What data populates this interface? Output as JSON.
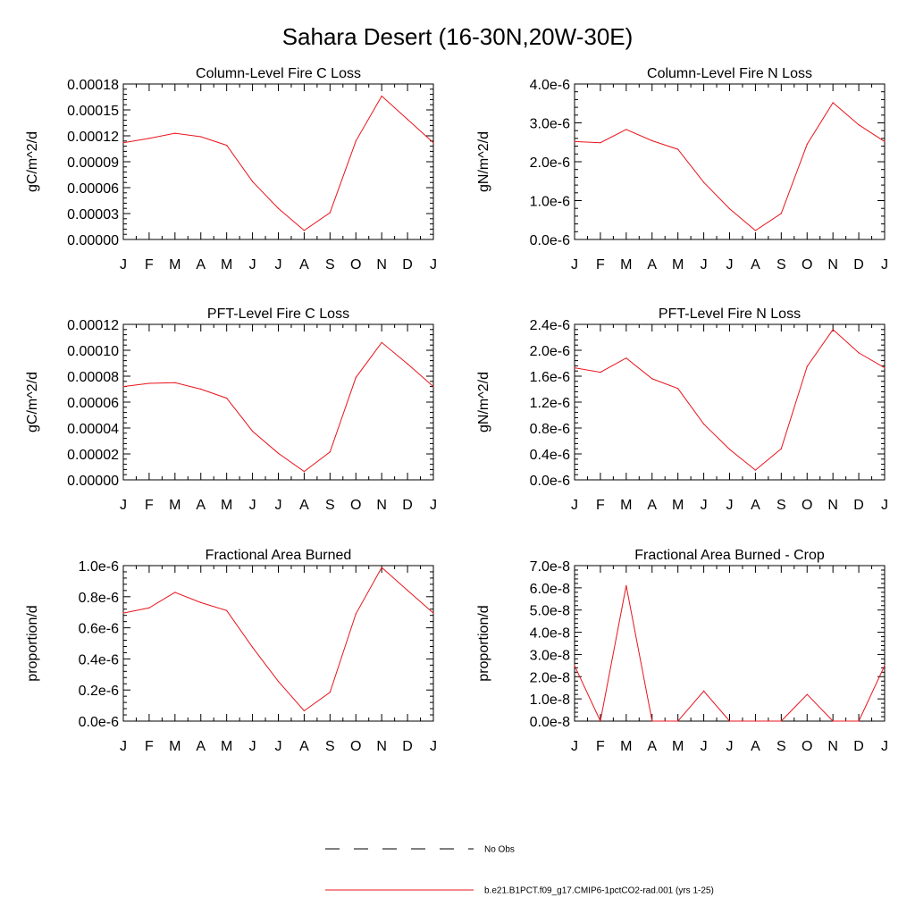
{
  "figure_title": "Sahara Desert (16-30N,20W-30E)",
  "legend": [
    {
      "label": "No Obs",
      "style": "dashed",
      "color": "#000000"
    },
    {
      "label": "b.e21.B1PCT.f09_g17.CMIP6-1pctCO2-rad.001 (yrs 1-25)",
      "style": "solid",
      "color": "#e8141c"
    }
  ],
  "colors": {
    "series": "#e8141c",
    "axes": "#000000",
    "background": "#ffffff"
  },
  "chart_data": [
    {
      "type": "line",
      "title": "Column-Level Fire C Loss",
      "ylabel": "gC/m^2/d",
      "xlabel": "",
      "categories": [
        "J",
        "F",
        "M",
        "A",
        "M",
        "J",
        "J",
        "A",
        "S",
        "O",
        "N",
        "D",
        "J"
      ],
      "ylim": [
        0,
        0.00018
      ],
      "yticks": [
        "0.00000",
        "0.00003",
        "0.00006",
        "0.00009",
        "0.00012",
        "0.00015",
        "0.00018"
      ],
      "series": [
        {
          "values": [
            0.000112,
            0.000117,
            0.000123,
            0.000119,
            0.000109,
            6.7e-05,
            3.6e-05,
            1.05e-05,
            3.1e-05,
            0.000114,
            0.000166,
            0.000139,
            0.000112
          ]
        }
      ]
    },
    {
      "type": "line",
      "title": "Column-Level Fire N Loss",
      "ylabel": "gN/m^2/d",
      "xlabel": "",
      "categories": [
        "J",
        "F",
        "M",
        "A",
        "M",
        "J",
        "J",
        "A",
        "S",
        "O",
        "N",
        "D",
        "J"
      ],
      "ylim": [
        0,
        4e-06
      ],
      "yticks": [
        "0.0e-6",
        "1.0e-6",
        "2.0e-6",
        "3.0e-6",
        "4.0e-6"
      ],
      "series": [
        {
          "values": [
            2.52e-06,
            2.49e-06,
            2.83e-06,
            2.54e-06,
            2.32e-06,
            1.47e-06,
            7.9e-07,
            2.3e-07,
            6.7e-07,
            2.45e-06,
            3.52e-06,
            2.95e-06,
            2.52e-06
          ]
        }
      ]
    },
    {
      "type": "line",
      "title": "PFT-Level Fire C Loss",
      "ylabel": "gC/m^2/d",
      "xlabel": "",
      "categories": [
        "J",
        "F",
        "M",
        "A",
        "M",
        "J",
        "J",
        "A",
        "S",
        "O",
        "N",
        "D",
        "J"
      ],
      "ylim": [
        0,
        0.00012
      ],
      "yticks": [
        "0.00000",
        "0.00002",
        "0.00004",
        "0.00006",
        "0.00008",
        "0.00010",
        "0.00012"
      ],
      "series": [
        {
          "values": [
            7.2e-05,
            7.45e-05,
            7.5e-05,
            7e-05,
            6.3e-05,
            3.75e-05,
            2.05e-05,
            6.5e-06,
            2.15e-05,
            7.9e-05,
            0.000106,
            8.95e-05,
            7.2e-05
          ]
        }
      ]
    },
    {
      "type": "line",
      "title": "PFT-Level Fire N Loss",
      "ylabel": "gN/m^2/d",
      "xlabel": "",
      "categories": [
        "J",
        "F",
        "M",
        "A",
        "M",
        "J",
        "J",
        "A",
        "S",
        "O",
        "N",
        "D",
        "J"
      ],
      "ylim": [
        0,
        2.4e-06
      ],
      "yticks": [
        "0.0e-6",
        "0.4e-6",
        "0.8e-6",
        "1.2e-6",
        "1.6e-6",
        "2.0e-6",
        "2.4e-6"
      ],
      "series": [
        {
          "values": [
            1.73e-06,
            1.66e-06,
            1.88e-06,
            1.56e-06,
            1.41e-06,
            8.6e-07,
            4.7e-07,
            1.5e-07,
            4.8e-07,
            1.75e-06,
            2.32e-06,
            1.96e-06,
            1.73e-06
          ]
        }
      ]
    },
    {
      "type": "line",
      "title": "Fractional Area Burned",
      "ylabel": "proportion/d",
      "xlabel": "",
      "categories": [
        "J",
        "F",
        "M",
        "A",
        "M",
        "J",
        "J",
        "A",
        "S",
        "O",
        "N",
        "D",
        "J"
      ],
      "ylim": [
        0,
        1e-06
      ],
      "yticks": [
        "0.0e-6",
        "0.2e-6",
        "0.4e-6",
        "0.6e-6",
        "0.8e-6",
        "1.0e-6"
      ],
      "series": [
        {
          "values": [
            6.95e-07,
            7.28e-07,
            8.28e-07,
            7.62e-07,
            7.11e-07,
            4.75e-07,
            2.55e-07,
            6.6e-08,
            1.85e-07,
            6.9e-07,
            9.88e-07,
            8.4e-07,
            6.95e-07
          ]
        }
      ]
    },
    {
      "type": "line",
      "title": "Fractional Area Burned - Crop",
      "ylabel": "proportion/d",
      "xlabel": "",
      "categories": [
        "J",
        "F",
        "M",
        "A",
        "M",
        "J",
        "J",
        "A",
        "S",
        "O",
        "N",
        "D",
        "J"
      ],
      "ylim": [
        0,
        7e-08
      ],
      "yticks": [
        "0.0e-8",
        "1.0e-8",
        "2.0e-8",
        "3.0e-8",
        "4.0e-8",
        "5.0e-8",
        "6.0e-8",
        "7.0e-8"
      ],
      "series": [
        {
          "values": [
            2.5e-08,
            0,
            6.1e-08,
            0,
            0,
            1.35e-08,
            0,
            0,
            0,
            1.2e-08,
            0,
            0,
            2.5e-08
          ]
        }
      ]
    }
  ]
}
